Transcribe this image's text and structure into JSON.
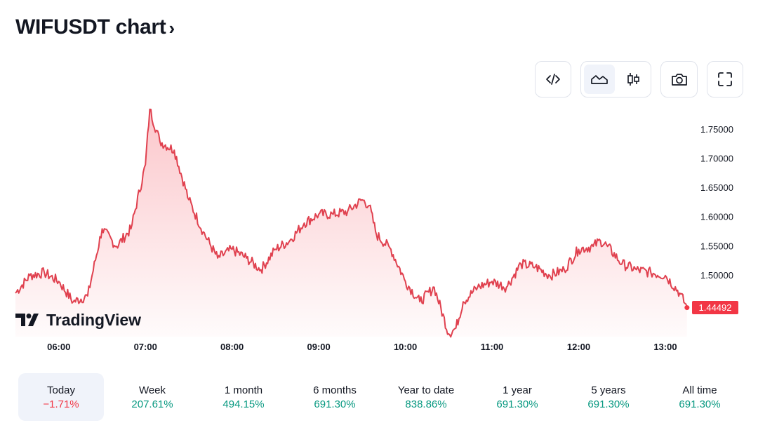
{
  "title": "WIFUSDT chart",
  "title_icon": "chevron-right-icon",
  "toolbar": {
    "embed_icon": "code-icon",
    "area_icon": "area-chart-icon",
    "candles_icon": "candles-icon",
    "snapshot_icon": "camera-icon",
    "fullscreen_icon": "fullscreen-icon"
  },
  "logo_text": "TradingView",
  "current_price": "1.44492",
  "colors": {
    "line": "#e0414f",
    "badge": "#f23645",
    "positive": "#089981",
    "negative": "#f23645"
  },
  "periods": [
    {
      "label": "Today",
      "value": "−1.71%",
      "trend": "neg",
      "active": true
    },
    {
      "label": "Week",
      "value": "207.61%",
      "trend": "pos"
    },
    {
      "label": "1 month",
      "value": "494.15%",
      "trend": "pos"
    },
    {
      "label": "6 months",
      "value": "691.30%",
      "trend": "pos"
    },
    {
      "label": "Year to date",
      "value": "838.86%",
      "trend": "pos"
    },
    {
      "label": "1 year",
      "value": "691.30%",
      "trend": "pos"
    },
    {
      "label": "5 years",
      "value": "691.30%",
      "trend": "pos"
    },
    {
      "label": "All time",
      "value": "691.30%",
      "trend": "pos"
    }
  ],
  "chart_data": {
    "type": "area",
    "x_ticks": [
      "06:00",
      "07:00",
      "08:00",
      "09:00",
      "10:00",
      "11:00",
      "12:00",
      "13:00"
    ],
    "y_ticks": [
      "1.75000",
      "1.70000",
      "1.65000",
      "1.60000",
      "1.55000",
      "1.50000"
    ],
    "ylim": [
      1.4,
      1.78
    ],
    "x": [
      "05:30",
      "05:40",
      "05:50",
      "06:00",
      "06:10",
      "06:20",
      "06:30",
      "06:40",
      "06:50",
      "07:00",
      "07:03",
      "07:10",
      "07:20",
      "07:30",
      "07:40",
      "07:50",
      "08:00",
      "08:10",
      "08:20",
      "08:30",
      "08:40",
      "08:50",
      "09:00",
      "09:10",
      "09:20",
      "09:30",
      "09:35",
      "09:40",
      "09:50",
      "10:00",
      "10:10",
      "10:20",
      "10:30",
      "10:35",
      "10:40",
      "10:50",
      "11:00",
      "11:10",
      "11:20",
      "11:30",
      "11:40",
      "11:50",
      "12:00",
      "12:10",
      "12:15",
      "12:20",
      "12:30",
      "12:40",
      "12:50",
      "13:00",
      "13:10",
      "13:15"
    ],
    "series": [
      {
        "values": [
          1.47,
          1.5,
          1.505,
          1.49,
          1.455,
          1.465,
          1.58,
          1.55,
          1.58,
          1.69,
          1.785,
          1.73,
          1.715,
          1.63,
          1.575,
          1.53,
          1.545,
          1.53,
          1.51,
          1.545,
          1.56,
          1.59,
          1.605,
          1.605,
          1.61,
          1.63,
          1.62,
          1.57,
          1.545,
          1.49,
          1.455,
          1.48,
          1.4,
          1.41,
          1.455,
          1.48,
          1.49,
          1.48,
          1.52,
          1.515,
          1.5,
          1.51,
          1.545,
          1.55,
          1.56,
          1.55,
          1.52,
          1.51,
          1.505,
          1.5,
          1.47,
          1.445
        ]
      }
    ]
  }
}
